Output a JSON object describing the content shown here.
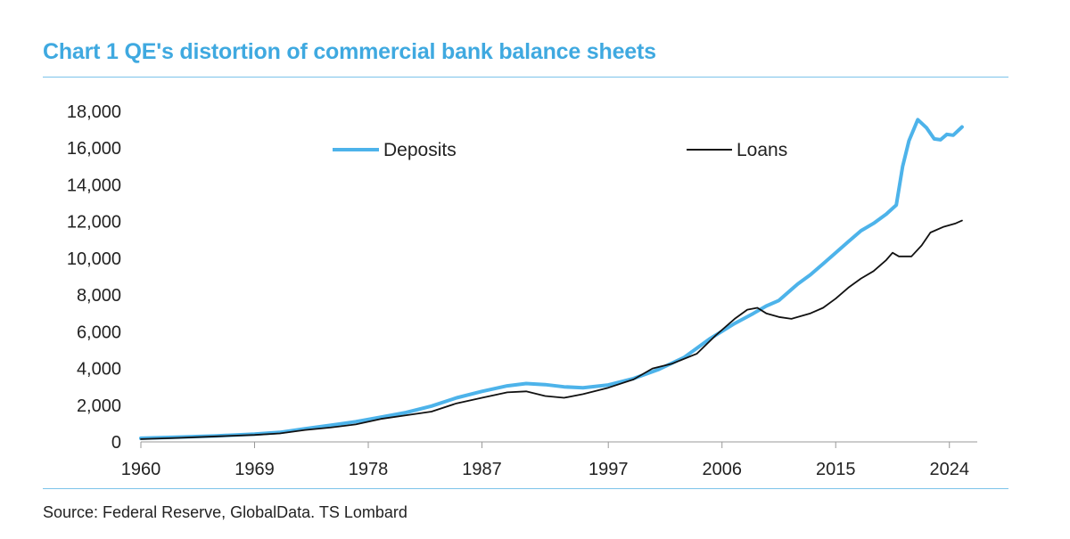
{
  "title": "Chart 1 QE's distortion of commercial bank balance sheets",
  "source": "Source: Federal Reserve, GlobalData. TS Lombard",
  "colors": {
    "title": "#3fa9e0",
    "deposits": "#4db3ea",
    "loans": "#111111",
    "rule": "#7cc3ea"
  },
  "chart_data": {
    "type": "line",
    "title": "Chart 1 QE's distortion of commercial bank balance sheets",
    "xlabel": "",
    "ylabel": "",
    "xlim": [
      1960,
      2025.5
    ],
    "ylim": [
      0,
      18000
    ],
    "yticks": [
      0,
      2000,
      4000,
      6000,
      8000,
      10000,
      12000,
      14000,
      16000,
      18000
    ],
    "ytick_labels": [
      "0",
      "2,000",
      "4,000",
      "6,000",
      "8,000",
      "10,000",
      "12,000",
      "14,000",
      "16,000",
      "18,000"
    ],
    "xticks": [
      1960,
      1969,
      1978,
      1987,
      1997,
      2006,
      2015,
      2024
    ],
    "xtick_labels": [
      "1960",
      "1969",
      "1978",
      "1987",
      "1997",
      "2006",
      "2015",
      "2024"
    ],
    "grid": false,
    "legend": "top",
    "series": [
      {
        "name": "Deposits",
        "color": "#4db3ea",
        "points": [
          [
            1960,
            200
          ],
          [
            1963,
            260
          ],
          [
            1966,
            330
          ],
          [
            1969,
            420
          ],
          [
            1971,
            520
          ],
          [
            1973,
            720
          ],
          [
            1975,
            900
          ],
          [
            1977,
            1100
          ],
          [
            1979,
            1350
          ],
          [
            1981,
            1600
          ],
          [
            1983,
            1950
          ],
          [
            1985,
            2400
          ],
          [
            1987,
            2750
          ],
          [
            1989,
            3050
          ],
          [
            1990.5,
            3180
          ],
          [
            1992,
            3120
          ],
          [
            1993.5,
            3000
          ],
          [
            1995,
            2950
          ],
          [
            1997,
            3100
          ],
          [
            1999,
            3450
          ],
          [
            2001,
            3950
          ],
          [
            2003,
            4600
          ],
          [
            2005,
            5600
          ],
          [
            2007,
            6450
          ],
          [
            2008.5,
            7000
          ],
          [
            2009.5,
            7400
          ],
          [
            2010.5,
            7700
          ],
          [
            2012,
            8600
          ],
          [
            2013,
            9100
          ],
          [
            2014,
            9700
          ],
          [
            2015,
            10300
          ],
          [
            2016,
            10900
          ],
          [
            2017,
            11500
          ],
          [
            2018,
            11900
          ],
          [
            2019,
            12400
          ],
          [
            2019.8,
            12900
          ],
          [
            2020.3,
            15000
          ],
          [
            2020.8,
            16400
          ],
          [
            2021.5,
            17550
          ],
          [
            2022.2,
            17100
          ],
          [
            2022.8,
            16500
          ],
          [
            2023.3,
            16450
          ],
          [
            2023.8,
            16750
          ],
          [
            2024.3,
            16700
          ],
          [
            2025,
            17150
          ]
        ]
      },
      {
        "name": "Loans",
        "color": "#111111",
        "points": [
          [
            1960,
            150
          ],
          [
            1963,
            220
          ],
          [
            1966,
            300
          ],
          [
            1969,
            380
          ],
          [
            1971,
            460
          ],
          [
            1973,
            650
          ],
          [
            1975,
            780
          ],
          [
            1977,
            950
          ],
          [
            1979,
            1250
          ],
          [
            1981,
            1450
          ],
          [
            1983,
            1650
          ],
          [
            1985,
            2100
          ],
          [
            1987,
            2400
          ],
          [
            1989,
            2700
          ],
          [
            1990.5,
            2750
          ],
          [
            1992,
            2500
          ],
          [
            1993.5,
            2400
          ],
          [
            1995,
            2600
          ],
          [
            1997,
            2950
          ],
          [
            1999,
            3400
          ],
          [
            2000.5,
            4000
          ],
          [
            2002,
            4250
          ],
          [
            2004,
            4800
          ],
          [
            2005.5,
            5800
          ],
          [
            2007,
            6700
          ],
          [
            2008,
            7200
          ],
          [
            2008.8,
            7300
          ],
          [
            2009.5,
            7000
          ],
          [
            2010.5,
            6800
          ],
          [
            2011.5,
            6700
          ],
          [
            2013,
            7000
          ],
          [
            2014,
            7300
          ],
          [
            2015,
            7800
          ],
          [
            2016,
            8400
          ],
          [
            2017,
            8900
          ],
          [
            2018,
            9300
          ],
          [
            2019,
            9900
          ],
          [
            2019.5,
            10300
          ],
          [
            2020,
            10100
          ],
          [
            2021,
            10100
          ],
          [
            2021.8,
            10700
          ],
          [
            2022.5,
            11400
          ],
          [
            2023.5,
            11700
          ],
          [
            2024.5,
            11900
          ],
          [
            2025,
            12050
          ]
        ]
      }
    ]
  }
}
